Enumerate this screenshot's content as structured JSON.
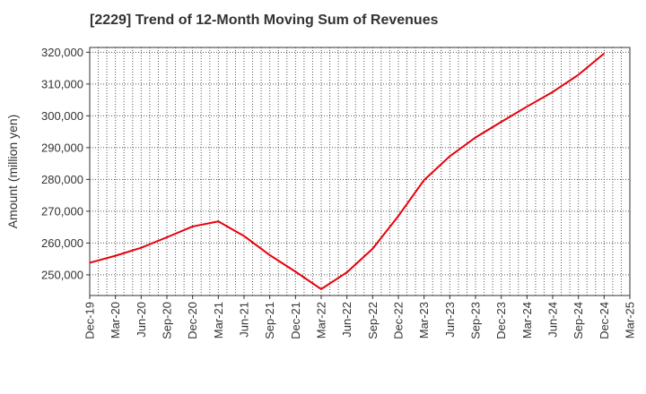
{
  "chart_data": {
    "type": "line",
    "title": "[2229]  Trend of 12-Month Moving Sum of Revenues",
    "xlabel": "",
    "ylabel": "Amount (million yen)",
    "x_categories": [
      "Dec-19",
      "Mar-20",
      "Jun-20",
      "Sep-20",
      "Dec-20",
      "Mar-21",
      "Jun-21",
      "Sep-21",
      "Dec-21",
      "Mar-22",
      "Jun-22",
      "Sep-22",
      "Dec-22",
      "Mar-23",
      "Jun-23",
      "Sep-23",
      "Dec-23",
      "Mar-24",
      "Jun-24",
      "Sep-24",
      "Dec-24",
      "Mar-25"
    ],
    "y_ticks": [
      250000,
      260000,
      270000,
      280000,
      290000,
      300000,
      310000,
      320000
    ],
    "y_tick_labels": [
      "250,000",
      "260,000",
      "270,000",
      "280,000",
      "290,000",
      "300,000",
      "310,000",
      "320,000"
    ],
    "ylim": [
      243500,
      321500
    ],
    "grid": true,
    "series": [
      {
        "color": "#e8000b",
        "x": [
          "Dec-19",
          "Mar-20",
          "Jun-20",
          "Sep-20",
          "Dec-20",
          "Mar-21",
          "Jun-21",
          "Sep-21",
          "Dec-21",
          "Mar-22",
          "Jun-22",
          "Sep-22",
          "Dec-22",
          "Mar-23",
          "Jun-23",
          "Sep-23",
          "Dec-23",
          "Mar-24",
          "Jun-24",
          "Sep-24",
          "Dec-24"
        ],
        "values": [
          253800,
          256000,
          258500,
          261800,
          265200,
          266800,
          262200,
          256200,
          251000,
          245500,
          250800,
          258200,
          268500,
          279800,
          287300,
          293200,
          298100,
          302900,
          307500,
          312900,
          319600
        ]
      }
    ]
  }
}
